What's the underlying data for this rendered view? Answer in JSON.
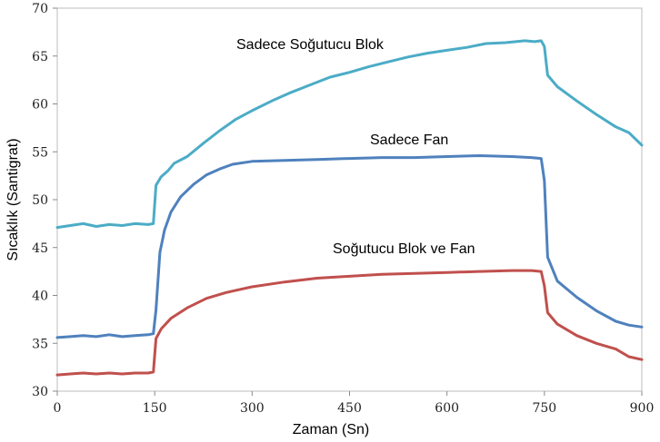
{
  "chart_data": {
    "type": "line",
    "title": "",
    "xlabel": "Zaman (Sn)",
    "ylabel": "Sıcaklık (Santigrat)",
    "xlim": [
      0,
      900
    ],
    "ylim": [
      30,
      70
    ],
    "xticks": [
      0,
      150,
      300,
      450,
      600,
      750,
      900
    ],
    "yticks": [
      30,
      35,
      40,
      45,
      50,
      55,
      60,
      65,
      70
    ],
    "grid": false,
    "legend": "none (labels placed next to lines)",
    "series": [
      {
        "name": "Sadece Soğutucu Blok",
        "color": "#4BACC6",
        "x": [
          0,
          20,
          40,
          60,
          80,
          100,
          120,
          140,
          148,
          152,
          160,
          170,
          180,
          200,
          225,
          250,
          275,
          300,
          330,
          360,
          390,
          420,
          450,
          480,
          510,
          540,
          570,
          600,
          630,
          660,
          690,
          720,
          735,
          745,
          750,
          755,
          770,
          800,
          830,
          860,
          880,
          900
        ],
        "y": [
          47.1,
          47.3,
          47.5,
          47.2,
          47.4,
          47.3,
          47.5,
          47.4,
          47.5,
          51.5,
          52.4,
          53.0,
          53.8,
          54.5,
          55.9,
          57.2,
          58.4,
          59.3,
          60.3,
          61.2,
          62.0,
          62.8,
          63.3,
          63.9,
          64.4,
          64.9,
          65.3,
          65.6,
          65.9,
          66.3,
          66.4,
          66.6,
          66.5,
          66.6,
          66.0,
          63.0,
          61.8,
          60.3,
          58.9,
          57.6,
          57.0,
          55.7
        ]
      },
      {
        "name": "Sadece Fan",
        "color": "#4F81BD",
        "x": [
          0,
          20,
          40,
          60,
          80,
          100,
          120,
          140,
          148,
          152,
          158,
          165,
          175,
          190,
          210,
          230,
          250,
          270,
          300,
          350,
          400,
          450,
          500,
          550,
          600,
          650,
          700,
          730,
          745,
          750,
          755,
          770,
          800,
          830,
          860,
          880,
          900
        ],
        "y": [
          35.6,
          35.7,
          35.8,
          35.7,
          35.9,
          35.7,
          35.8,
          35.9,
          36.0,
          38.5,
          44.5,
          46.8,
          48.7,
          50.3,
          51.6,
          52.6,
          53.2,
          53.7,
          54.0,
          54.1,
          54.2,
          54.3,
          54.4,
          54.4,
          54.5,
          54.6,
          54.5,
          54.4,
          54.3,
          52.0,
          44.0,
          41.5,
          39.8,
          38.4,
          37.3,
          36.9,
          36.7
        ]
      },
      {
        "name": "Soğutucu Blok ve Fan",
        "color": "#C0504D",
        "x": [
          0,
          20,
          40,
          60,
          80,
          100,
          120,
          140,
          148,
          152,
          160,
          175,
          200,
          230,
          260,
          300,
          350,
          400,
          450,
          500,
          550,
          600,
          650,
          700,
          730,
          745,
          750,
          755,
          770,
          800,
          830,
          860,
          880,
          900
        ],
        "y": [
          31.7,
          31.8,
          31.9,
          31.8,
          31.9,
          31.8,
          31.9,
          31.9,
          32.0,
          35.5,
          36.5,
          37.6,
          38.7,
          39.7,
          40.3,
          40.9,
          41.4,
          41.8,
          42.0,
          42.2,
          42.3,
          42.4,
          42.5,
          42.6,
          42.6,
          42.5,
          41.0,
          38.2,
          37.0,
          35.8,
          35.0,
          34.4,
          33.6,
          33.3
        ]
      }
    ]
  }
}
